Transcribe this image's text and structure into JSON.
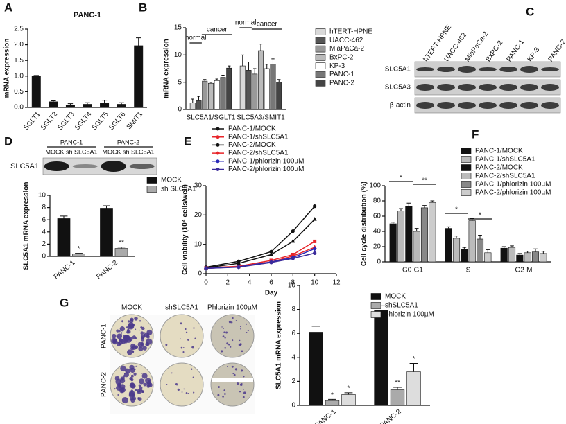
{
  "panel_labels": [
    "A",
    "B",
    "C",
    "D",
    "E",
    "F",
    "G"
  ],
  "chart_data": [
    {
      "type": "bar",
      "title": "PANC-1",
      "ylabel": "mRNA expression",
      "categories": [
        "SGLT1",
        "SGLT2",
        "SGLT3",
        "SGLT4",
        "SGLT5",
        "SGLT6",
        "SMIT1"
      ],
      "values": [
        1.0,
        0.18,
        0.07,
        0.1,
        0.13,
        0.1,
        1.97
      ],
      "errors": [
        0.02,
        0.03,
        0.05,
        0.05,
        0.1,
        0.05,
        0.25
      ],
      "color": "#111111",
      "ylim": [
        0,
        2.5
      ],
      "yticks": [
        {
          "value": 0,
          "label": "0.0"
        },
        0.5,
        {
          "value": 1,
          "label": "1.0"
        },
        1.5,
        {
          "value": 2,
          "label": "2.0"
        },
        2.5
      ]
    },
    {
      "type": "bar",
      "ylabel": "mRNA expression",
      "categories": [
        "SLC5A1/SGLT1",
        "SLC5A3/SMIT1"
      ],
      "annotations": [
        "normal",
        "cancer",
        "normal",
        "cancer"
      ],
      "ylim": [
        0,
        15
      ],
      "yticks": [
        0,
        5,
        10,
        15
      ],
      "series": [
        {
          "name": "hTERT-HPNE",
          "color": "#d9d9d9",
          "values": [
            1.2,
            8.0
          ],
          "errors": [
            0.7,
            2.0
          ]
        },
        {
          "name": "UACC-462",
          "color": "#555555",
          "values": [
            1.6,
            7.2
          ],
          "errors": [
            0.8,
            1.5
          ]
        },
        {
          "name": "MiaPaCa-2",
          "color": "#999999",
          "values": [
            5.2,
            6.5
          ],
          "errors": [
            0.3,
            1.0
          ]
        },
        {
          "name": "BxPC-2",
          "color": "#bbbbbb",
          "values": [
            4.8,
            10.8
          ],
          "errors": [
            0.2,
            1.2
          ]
        },
        {
          "name": "KP-3",
          "color": "#ffffff",
          "values": [
            5.3,
            7.5
          ],
          "errors": [
            0.3,
            0.8
          ]
        },
        {
          "name": "PANC-1",
          "color": "#777777",
          "values": [
            5.9,
            8.3
          ],
          "errors": [
            0.4,
            1.0
          ]
        },
        {
          "name": "PANC-2",
          "color": "#444444",
          "values": [
            7.6,
            5.0
          ],
          "errors": [
            0.4,
            0.5
          ]
        }
      ]
    },
    {
      "type": "bar",
      "ylabel": "SLC5A1 mRNA expression",
      "categories": [
        "PANC-1",
        "PANC-2"
      ],
      "ylim": [
        0,
        10
      ],
      "yticks": [
        0,
        2,
        4,
        6,
        8,
        10
      ],
      "series": [
        {
          "name": "MOCK",
          "color": "#111111",
          "values": [
            6.2,
            7.9
          ],
          "errors": [
            0.4,
            0.4
          ]
        },
        {
          "name": "sh SLC5A1",
          "color": "#aaaaaa",
          "values": [
            0.4,
            1.3
          ],
          "errors": [
            0.1,
            0.2
          ],
          "marks": [
            "*",
            "**"
          ]
        }
      ]
    },
    {
      "type": "line",
      "xlabel": "Day",
      "ylabel": "Cell viability (10⁴ cells/well)",
      "x": [
        0,
        3,
        6,
        8,
        10
      ],
      "xlim": [
        0,
        12
      ],
      "xticks": [
        0,
        2,
        4,
        6,
        8,
        10,
        12
      ],
      "ylim": [
        0,
        30
      ],
      "yticks": [
        0,
        10,
        20,
        30
      ],
      "series": [
        {
          "name": "PANC-1/MOCK",
          "color": "#111111",
          "marker": "circle",
          "values": [
            2.2,
            4.2,
            7.5,
            14.5,
            23
          ]
        },
        {
          "name": "PANC-1/shSLC5A1",
          "color": "#e8252a",
          "marker": "square",
          "values": [
            2.0,
            2.5,
            4.5,
            6.5,
            11
          ]
        },
        {
          "name": "PANC-2/MOCK",
          "color": "#111111",
          "marker": "triangle",
          "values": [
            2.0,
            3.5,
            6.5,
            11,
            18.5
          ]
        },
        {
          "name": "PANC-2/shSLC5A1",
          "color": "#e8252a",
          "marker": "triangle",
          "values": [
            1.8,
            2.3,
            4.0,
            6.0,
            9
          ]
        },
        {
          "name": "PANC-1/phlorizin 100µM",
          "color": "#2a2ab8",
          "marker": "diamond",
          "values": [
            1.8,
            2.3,
            4.0,
            5.5,
            8.5
          ]
        },
        {
          "name": "PANC-2/phlorizin 100µM",
          "color": "#3a2a9a",
          "marker": "circle",
          "values": [
            1.8,
            2.2,
            3.8,
            5.2,
            7
          ]
        }
      ]
    },
    {
      "type": "bar",
      "ylabel": "Cell cycle distribution (%)",
      "categories": [
        "G0-G1",
        "S",
        "G2-M"
      ],
      "annotations": [
        "*",
        "**",
        "*",
        "*"
      ],
      "ylim": [
        0,
        100
      ],
      "yticks": [
        0,
        20,
        40,
        60,
        80,
        100
      ],
      "series": [
        {
          "name": "PANC-1/MOCK",
          "color": "#111111",
          "values": [
            50,
            44,
            18
          ],
          "errors": [
            2,
            2,
            2
          ]
        },
        {
          "name": "PANC-1/shSLC5A1",
          "color": "#bbbbbb",
          "values": [
            67,
            31,
            19
          ],
          "errors": [
            3,
            3,
            2
          ]
        },
        {
          "name": "PANC-2/MOCK",
          "color": "#111111",
          "values": [
            73,
            17,
            9
          ],
          "errors": [
            4,
            2,
            2
          ]
        },
        {
          "name": "PANC-2/shSLC5A1",
          "color": "#bbbbbb",
          "values": [
            40,
            54,
            12
          ],
          "errors": [
            4,
            3,
            2
          ]
        },
        {
          "name": "PANC-1/phlorizin 100µM",
          "color": "#888888",
          "values": [
            71,
            30,
            13
          ],
          "errors": [
            3,
            5,
            4
          ]
        },
        {
          "name": "PANC-2/phlorizin 100µM",
          "color": "#cccccc",
          "values": [
            78,
            12,
            11
          ],
          "errors": [
            2,
            4,
            3
          ]
        }
      ]
    },
    {
      "type": "bar",
      "ylabel": "SLC5A1 mRNA expression",
      "categories": [
        "PANC-1",
        "PANC-2"
      ],
      "ylim": [
        0,
        10
      ],
      "yticks": [
        0,
        2,
        4,
        6,
        8,
        10
      ],
      "series": [
        {
          "name": "MOCK",
          "color": "#111111",
          "values": [
            6.1,
            7.9
          ],
          "errors": [
            0.5,
            0.4
          ]
        },
        {
          "name": "shSLC5A1",
          "color": "#aaaaaa",
          "values": [
            0.4,
            1.3
          ],
          "errors": [
            0.1,
            0.2
          ],
          "marks": [
            "*",
            "**"
          ]
        },
        {
          "name": "phlorizin 100µM",
          "color": "#dddddd",
          "values": [
            0.9,
            2.8
          ],
          "errors": [
            0.15,
            0.7
          ],
          "marks": [
            "*",
            "*"
          ]
        }
      ]
    }
  ],
  "blot_c": {
    "lanes": [
      "hTERT-HPNE",
      "UACC-462",
      "MiaPaCa-2",
      "BxPC-2",
      "PANC-1",
      "KP-3",
      "PANC-2"
    ],
    "rows": [
      "SLC5A1",
      "SLC5A3",
      "β-actin"
    ]
  },
  "blot_d": {
    "groups": [
      "PANC-1",
      "PANC-2"
    ],
    "lanes": [
      "MOCK sh SLC5A1",
      "MOCK sh SLC5A1"
    ],
    "rows": [
      "SLC5A1"
    ]
  },
  "colony_g": {
    "columns": [
      "MOCK",
      "shSLC5A1",
      "Phlorizin  100µM"
    ],
    "rows": [
      "PANC-1",
      "PANC-2"
    ]
  }
}
